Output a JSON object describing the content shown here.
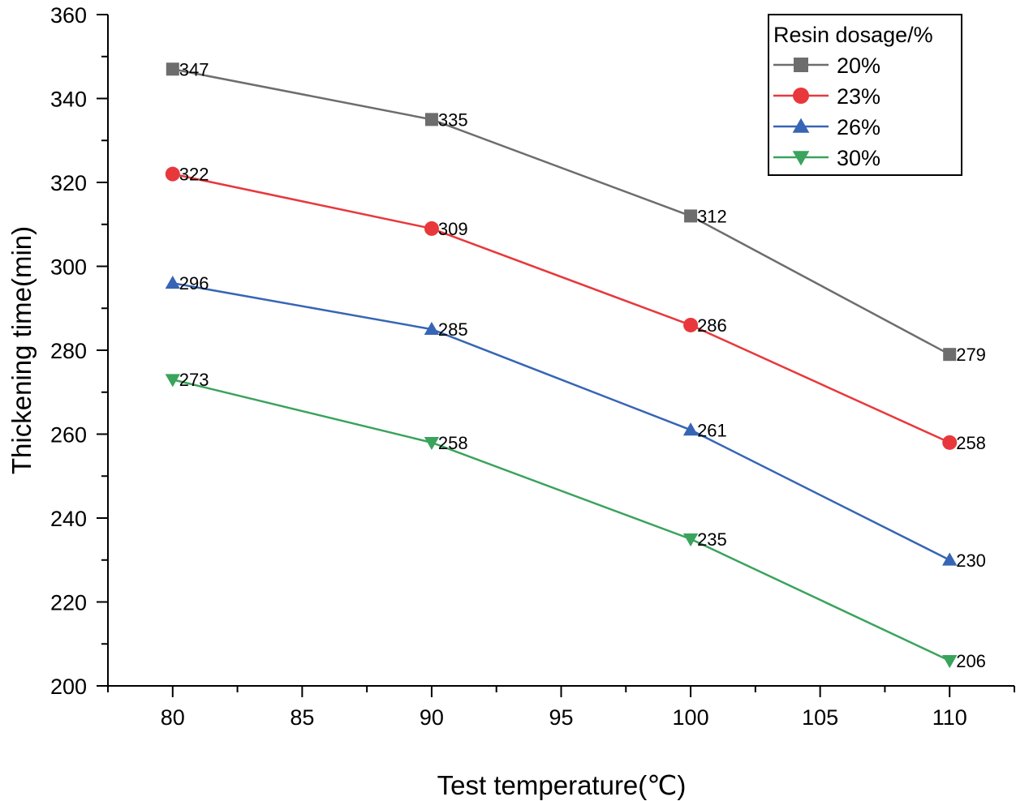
{
  "chart_data": {
    "type": "line",
    "title": "",
    "xlabel": "Test temperature(℃)",
    "ylabel": "Thickening time(min)",
    "x": [
      80,
      90,
      100,
      110
    ],
    "xlim": [
      77.5,
      112.5
    ],
    "ylim": [
      200,
      360
    ],
    "xticks": [
      80,
      85,
      90,
      95,
      100,
      105,
      110
    ],
    "yticks": [
      200,
      220,
      240,
      260,
      280,
      300,
      320,
      340,
      360
    ],
    "grid": false,
    "legend_title": "Resin dosage/%",
    "legend_position": "top-right",
    "series": [
      {
        "name": "20%",
        "values": [
          347,
          335,
          312,
          279
        ],
        "color": "#6d6d6d",
        "marker": "square"
      },
      {
        "name": "23%",
        "values": [
          322,
          309,
          286,
          258
        ],
        "color": "#e8383b",
        "marker": "circle"
      },
      {
        "name": "26%",
        "values": [
          296,
          285,
          261,
          230
        ],
        "color": "#3765b6",
        "marker": "triangle-up"
      },
      {
        "name": "30%",
        "values": [
          273,
          258,
          235,
          206
        ],
        "color": "#3aa35c",
        "marker": "triangle-down"
      }
    ]
  }
}
